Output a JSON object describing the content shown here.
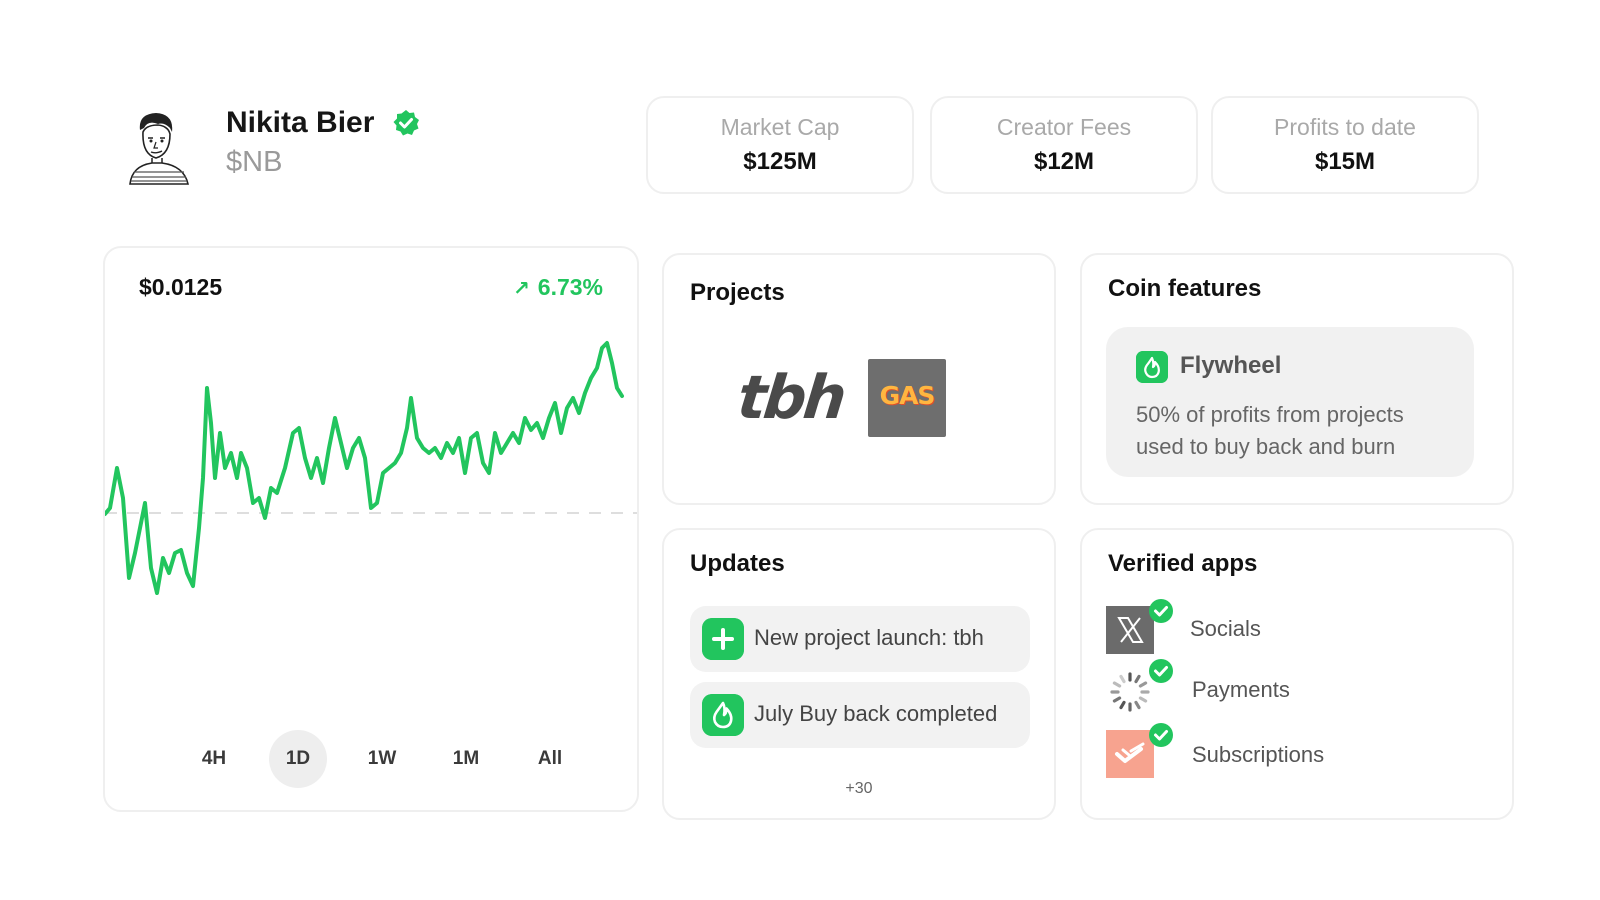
{
  "profile": {
    "name": "Nikita Bier",
    "ticker": "$NB"
  },
  "stats": [
    {
      "label": "Market Cap",
      "value": "$125M"
    },
    {
      "label": "Creator Fees",
      "value": "$12M"
    },
    {
      "label": "Profits to date",
      "value": "$15M"
    }
  ],
  "price_chart": {
    "price": "$0.0125",
    "change": "6.73%",
    "ranges": [
      "4H",
      "1D",
      "1W",
      "1M",
      "All"
    ],
    "selected_range": "1D"
  },
  "projects": {
    "title": "Projects",
    "items": [
      "tbh",
      "GAS"
    ]
  },
  "coin_features": {
    "title": "Coin features",
    "feature_title": "Flywheel",
    "feature_desc": "50% of profits from projects used to buy back and burn"
  },
  "updates": {
    "title": "Updates",
    "items": [
      {
        "icon": "plus-icon",
        "text": "New project launch: tbh"
      },
      {
        "icon": "flame-icon",
        "text": "July Buy back completed"
      }
    ],
    "more": "+30"
  },
  "verified_apps": {
    "title": "Verified apps",
    "items": [
      {
        "icon": "x-logo-icon",
        "label": "Socials"
      },
      {
        "icon": "payments-spinner-icon",
        "label": "Payments"
      },
      {
        "icon": "subscriptions-logo-icon",
        "label": "Subscriptions"
      }
    ]
  },
  "colors": {
    "accent_green": "#22c55e",
    "card_border": "#efefef"
  }
}
